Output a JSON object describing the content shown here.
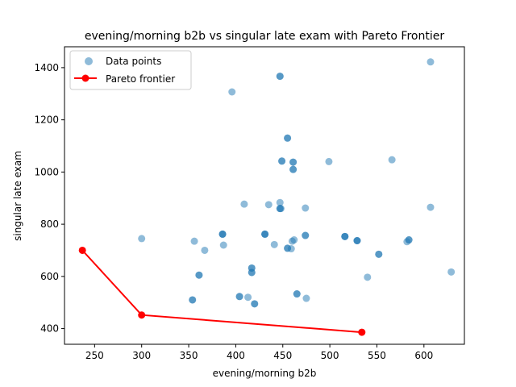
{
  "chart_data": {
    "type": "scatter",
    "title": "evening/morning b2b vs singular late exam with Pareto Frontier",
    "xlabel": "evening/morning b2b",
    "ylabel": "singular late exam",
    "xlim": [
      218,
      643
    ],
    "ylim": [
      340,
      1480
    ],
    "xticks": [
      250,
      300,
      350,
      400,
      450,
      500,
      550,
      600
    ],
    "yticks": [
      400,
      600,
      800,
      1000,
      1200,
      1400
    ],
    "grid": false,
    "legend_position": "top-left",
    "series": [
      {
        "name": "Data points",
        "kind": "scatter",
        "color": "#1f77b4",
        "points": [
          {
            "x": 300,
            "y": 745
          },
          {
            "x": 356,
            "y": 735
          },
          {
            "x": 367,
            "y": 700
          },
          {
            "x": 354,
            "y": 510
          },
          {
            "x": 354,
            "y": 510
          },
          {
            "x": 361,
            "y": 605
          },
          {
            "x": 361,
            "y": 605
          },
          {
            "x": 386,
            "y": 762
          },
          {
            "x": 386,
            "y": 762
          },
          {
            "x": 386,
            "y": 762
          },
          {
            "x": 387,
            "y": 720
          },
          {
            "x": 396,
            "y": 1307
          },
          {
            "x": 404,
            "y": 523
          },
          {
            "x": 404,
            "y": 523
          },
          {
            "x": 409,
            "y": 877
          },
          {
            "x": 413,
            "y": 520
          },
          {
            "x": 417,
            "y": 632
          },
          {
            "x": 417,
            "y": 632
          },
          {
            "x": 417,
            "y": 615
          },
          {
            "x": 417,
            "y": 615
          },
          {
            "x": 420,
            "y": 495
          },
          {
            "x": 420,
            "y": 495
          },
          {
            "x": 431,
            "y": 762
          },
          {
            "x": 431,
            "y": 762
          },
          {
            "x": 431,
            "y": 762
          },
          {
            "x": 435,
            "y": 875
          },
          {
            "x": 441,
            "y": 722
          },
          {
            "x": 447,
            "y": 1367
          },
          {
            "x": 447,
            "y": 1367
          },
          {
            "x": 447,
            "y": 883
          },
          {
            "x": 447,
            "y": 860
          },
          {
            "x": 447,
            "y": 860
          },
          {
            "x": 448,
            "y": 860
          },
          {
            "x": 449,
            "y": 1042
          },
          {
            "x": 449,
            "y": 1042
          },
          {
            "x": 455,
            "y": 1130
          },
          {
            "x": 455,
            "y": 1130
          },
          {
            "x": 455,
            "y": 708
          },
          {
            "x": 455,
            "y": 708
          },
          {
            "x": 459,
            "y": 706
          },
          {
            "x": 460,
            "y": 735
          },
          {
            "x": 461,
            "y": 1038
          },
          {
            "x": 461,
            "y": 1038
          },
          {
            "x": 461,
            "y": 1010
          },
          {
            "x": 461,
            "y": 1010
          },
          {
            "x": 462,
            "y": 740
          },
          {
            "x": 465,
            "y": 533
          },
          {
            "x": 465,
            "y": 533
          },
          {
            "x": 474,
            "y": 862
          },
          {
            "x": 474,
            "y": 757
          },
          {
            "x": 474,
            "y": 757
          },
          {
            "x": 475,
            "y": 516
          },
          {
            "x": 499,
            "y": 1040
          },
          {
            "x": 516,
            "y": 753
          },
          {
            "x": 516,
            "y": 753
          },
          {
            "x": 516,
            "y": 753
          },
          {
            "x": 529,
            "y": 737
          },
          {
            "x": 529,
            "y": 737
          },
          {
            "x": 529,
            "y": 737
          },
          {
            "x": 540,
            "y": 597
          },
          {
            "x": 552,
            "y": 685
          },
          {
            "x": 552,
            "y": 685
          },
          {
            "x": 566,
            "y": 1047
          },
          {
            "x": 582,
            "y": 733
          },
          {
            "x": 584,
            "y": 740
          },
          {
            "x": 584,
            "y": 740
          },
          {
            "x": 607,
            "y": 1422
          },
          {
            "x": 607,
            "y": 865
          },
          {
            "x": 629,
            "y": 617
          }
        ]
      },
      {
        "name": "Pareto frontier",
        "kind": "line",
        "color": "#ff0000",
        "points": [
          {
            "x": 237,
            "y": 700
          },
          {
            "x": 300,
            "y": 452
          },
          {
            "x": 534,
            "y": 386
          }
        ]
      }
    ]
  }
}
